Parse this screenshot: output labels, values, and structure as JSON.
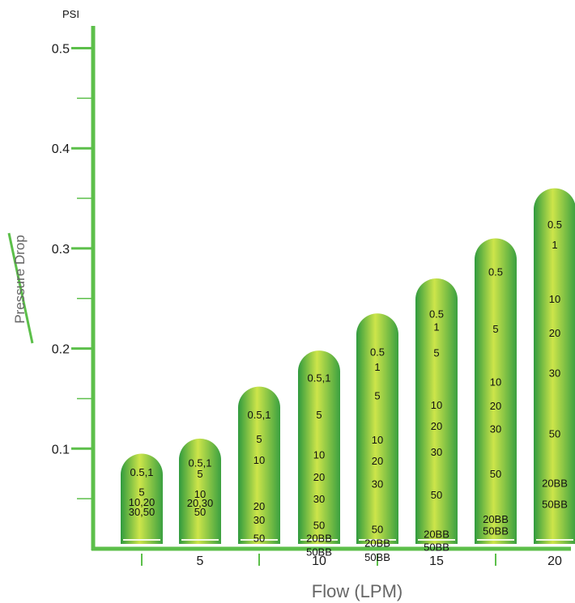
{
  "chart_data": {
    "type": "bar",
    "y_unit_label": "PSI",
    "ylabel": "Pressure Drop",
    "xlabel": "Flow (LPM)",
    "ylim": [
      0,
      0.5
    ],
    "y_ticks": [
      "0.1",
      "0.2",
      "0.3",
      "0.4",
      "0.5"
    ],
    "x_tick_labels": [
      "5",
      "10",
      "15",
      "20"
    ],
    "bars": [
      {
        "value": 0.095,
        "labels": [
          [
            "0.5,1",
            0.077
          ],
          [
            "5",
            0.057
          ],
          [
            "10,20",
            0.047
          ],
          [
            "30,50",
            0.037
          ]
        ]
      },
      {
        "value": 0.11,
        "labels": [
          [
            "0.5,1",
            0.086
          ],
          [
            "5",
            0.075
          ],
          [
            "10",
            0.055
          ],
          [
            "20,30",
            0.046
          ],
          [
            "50",
            0.037
          ]
        ]
      },
      {
        "value": 0.162,
        "labels": [
          [
            "0.5,1",
            0.134
          ],
          [
            "5",
            0.11
          ],
          [
            "10",
            0.089
          ],
          [
            "20",
            0.043
          ],
          [
            "30",
            0.029
          ],
          [
            "50",
            0.011
          ]
        ]
      },
      {
        "value": 0.198,
        "labels": [
          [
            "0.5,1",
            0.171
          ],
          [
            "5",
            0.134
          ],
          [
            "10",
            0.094
          ],
          [
            "20",
            0.072
          ],
          [
            "30",
            0.05
          ],
          [
            "50",
            0.024
          ],
          [
            "20BB",
            0.011
          ],
          [
            "50BB",
            -0.003
          ]
        ]
      },
      {
        "value": 0.235,
        "labels": [
          [
            "0.5",
            0.197
          ],
          [
            "1",
            0.182
          ],
          [
            "5",
            0.153
          ],
          [
            "10",
            0.109
          ],
          [
            "20",
            0.088
          ],
          [
            "30",
            0.065
          ],
          [
            "50",
            0.02
          ],
          [
            "20BB",
            0.006
          ],
          [
            "50BB",
            -0.008
          ]
        ]
      },
      {
        "value": 0.27,
        "labels": [
          [
            "0.5",
            0.235
          ],
          [
            "1",
            0.222
          ],
          [
            "5",
            0.196
          ],
          [
            "10",
            0.144
          ],
          [
            "20",
            0.123
          ],
          [
            "30",
            0.097
          ],
          [
            "50",
            0.054
          ],
          [
            "20BB",
            0.015
          ],
          [
            "50BB",
            0.002
          ]
        ]
      },
      {
        "value": 0.31,
        "labels": [
          [
            "0.5",
            0.277
          ],
          [
            "5",
            0.22
          ],
          [
            "10",
            0.167
          ],
          [
            "20",
            0.143
          ],
          [
            "30",
            0.12
          ],
          [
            "50",
            0.075
          ],
          [
            "20BB",
            0.03
          ],
          [
            "50BB",
            0.018
          ]
        ]
      },
      {
        "value": 0.36,
        "labels": [
          [
            "0.5",
            0.324
          ],
          [
            "1",
            0.304
          ],
          [
            "10",
            0.25
          ],
          [
            "20",
            0.216
          ],
          [
            "30",
            0.176
          ],
          [
            "50",
            0.115
          ],
          [
            "20BB",
            0.066
          ],
          [
            "50BB",
            0.045
          ]
        ]
      }
    ],
    "colors": {
      "axis": "#5cbf4a",
      "bar_light": "#cde54a",
      "bar_mid": "#7dc447",
      "bar_dark": "#2f9a3e"
    }
  }
}
